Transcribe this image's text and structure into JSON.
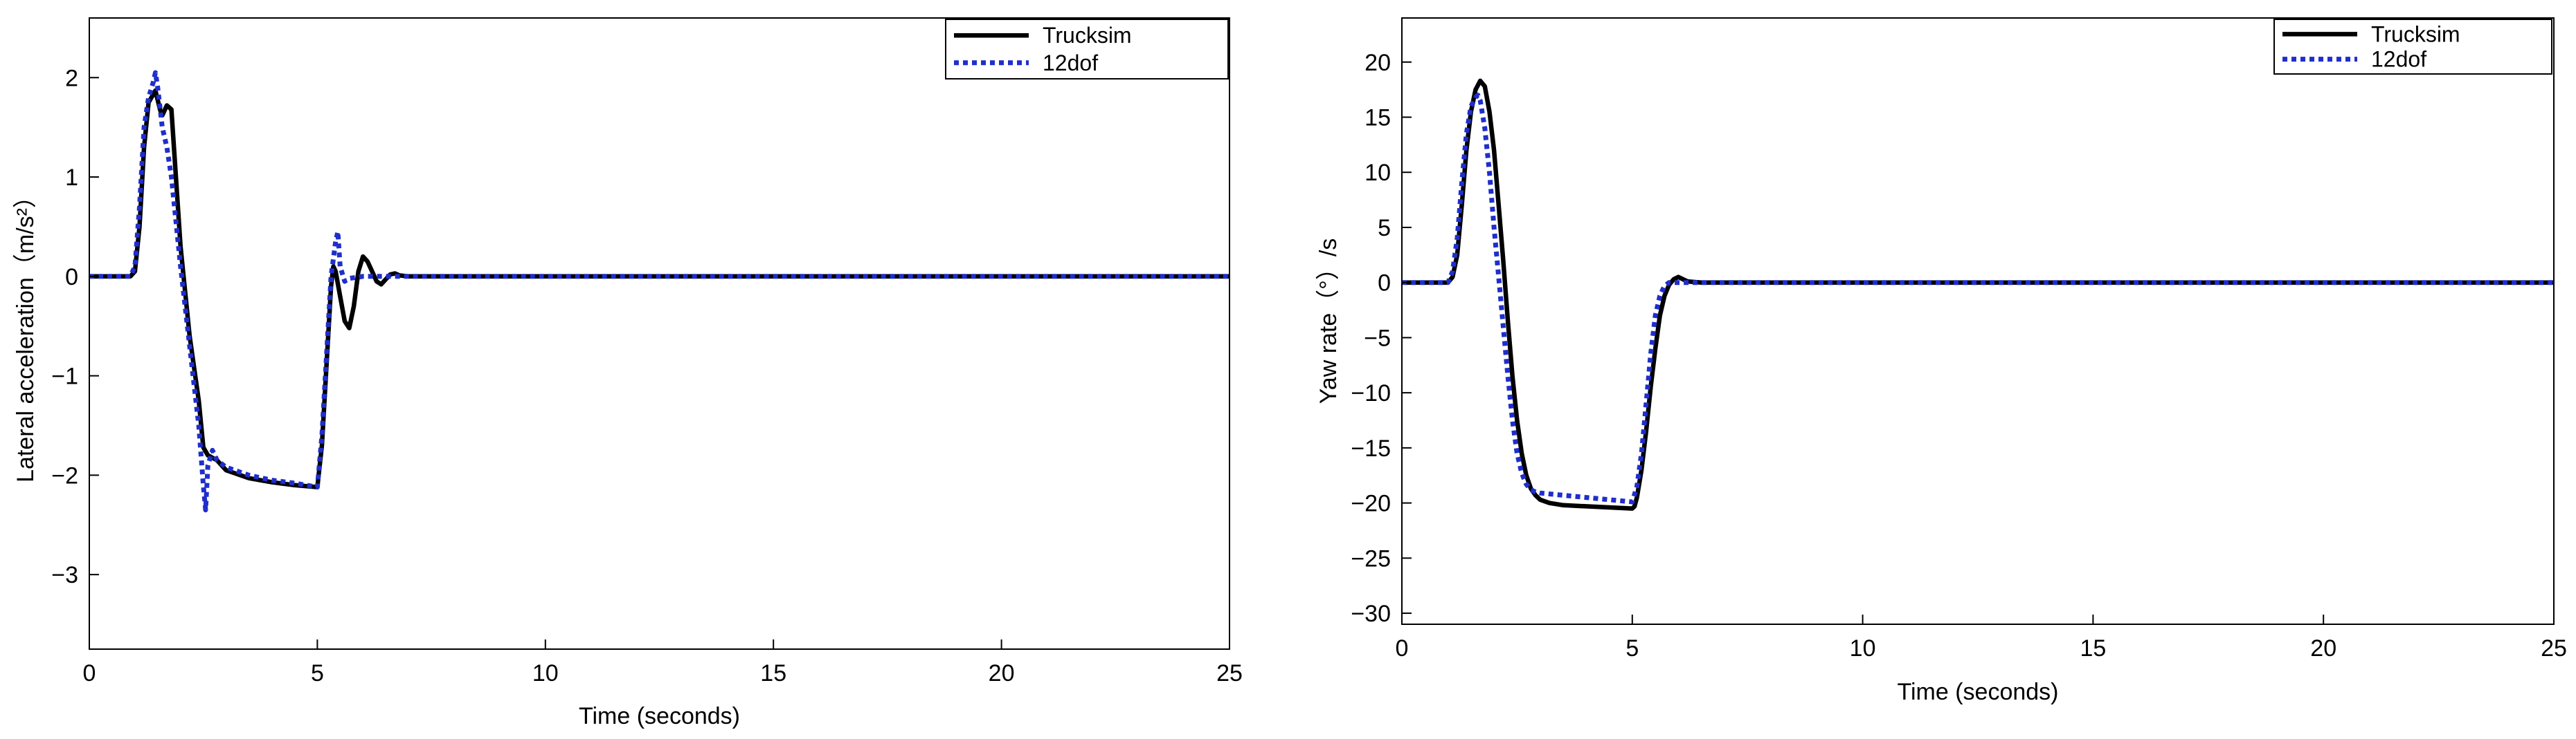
{
  "chart_data": [
    {
      "type": "line",
      "title": "",
      "xlabel": "Time (seconds)",
      "ylabel": "Lateral acceleration（m/s²）",
      "xlim": [
        0,
        25
      ],
      "ylim": [
        -3.75,
        2.6
      ],
      "xticks": [
        0,
        5,
        10,
        15,
        20,
        25
      ],
      "xtick_labels": [
        "0",
        "5",
        "10",
        "15",
        "20",
        "25"
      ],
      "yticks": [
        2,
        1,
        0,
        -1,
        -2,
        -3
      ],
      "ytick_labels": [
        "2",
        "1",
        "0",
        "−1",
        "−2",
        "−3"
      ],
      "grid": false,
      "legend": "top-right",
      "series": [
        {
          "name": "Trucksim",
          "color": "#000000",
          "style": "solid",
          "x": [
            0,
            0.9,
            1.0,
            1.1,
            1.2,
            1.3,
            1.45,
            1.55,
            1.6,
            1.7,
            1.8,
            2.0,
            2.2,
            2.4,
            2.5,
            2.6,
            2.8,
            3.0,
            3.5,
            4.0,
            4.5,
            5.0,
            5.1,
            5.2,
            5.3,
            5.35,
            5.4,
            5.5,
            5.6,
            5.7,
            5.8,
            5.9,
            6.0,
            6.1,
            6.2,
            6.3,
            6.4,
            6.5,
            6.6,
            6.7,
            6.8,
            7.0,
            7.5,
            8,
            10,
            15,
            20,
            25
          ],
          "y": [
            0,
            0,
            0.05,
            0.5,
            1.3,
            1.75,
            1.87,
            1.68,
            1.62,
            1.72,
            1.68,
            0.3,
            -0.6,
            -1.25,
            -1.72,
            -1.8,
            -1.85,
            -1.95,
            -2.03,
            -2.07,
            -2.1,
            -2.12,
            -1.7,
            -0.9,
            -0.1,
            0.1,
            0.05,
            -0.2,
            -0.45,
            -0.52,
            -0.3,
            0.05,
            0.2,
            0.15,
            0.05,
            -0.05,
            -0.08,
            -0.03,
            0.02,
            0.03,
            0.01,
            0,
            0,
            0,
            0,
            0,
            0,
            0
          ]
        },
        {
          "name": "12dof",
          "color": "#1f2ecc",
          "style": "dotted",
          "x": [
            0,
            0.9,
            1.0,
            1.1,
            1.2,
            1.3,
            1.4,
            1.45,
            1.5,
            1.6,
            1.7,
            1.8,
            2.0,
            2.2,
            2.4,
            2.5,
            2.55,
            2.6,
            2.7,
            2.8,
            3.0,
            3.5,
            4.0,
            4.5,
            5.0,
            5.1,
            5.2,
            5.3,
            5.4,
            5.45,
            5.5,
            5.6,
            5.7,
            6.0,
            6.5,
            7,
            10,
            15,
            20,
            25
          ],
          "y": [
            0,
            0,
            0.1,
            0.7,
            1.5,
            1.8,
            1.95,
            2.05,
            1.9,
            1.5,
            1.3,
            1.0,
            0.1,
            -0.7,
            -1.5,
            -2.1,
            -2.35,
            -1.9,
            -1.75,
            -1.85,
            -1.92,
            -2.0,
            -2.05,
            -2.08,
            -2.12,
            -1.6,
            -0.8,
            0.0,
            0.35,
            0.45,
            0.1,
            -0.05,
            -0.02,
            0,
            0,
            0,
            0,
            0,
            0,
            0
          ]
        }
      ]
    },
    {
      "type": "line",
      "title": "",
      "xlabel": "Time (seconds)",
      "ylabel": "Yaw rate（°）/s",
      "xlim": [
        0,
        25
      ],
      "ylim": [
        -31,
        24
      ],
      "xticks": [
        0,
        5,
        10,
        15,
        20,
        25
      ],
      "xtick_labels": [
        "0",
        "5",
        "10",
        "15",
        "20",
        "25"
      ],
      "yticks": [
        20,
        15,
        10,
        5,
        0,
        -5,
        -10,
        -15,
        -20,
        -25,
        -30
      ],
      "ytick_labels": [
        "20",
        "15",
        "10",
        "5",
        "0",
        "−5",
        "−10",
        "−15",
        "−20",
        "−25",
        "−30"
      ],
      "grid": false,
      "legend": "top-right",
      "series": [
        {
          "name": "Trucksim",
          "color": "#000000",
          "style": "solid",
          "x": [
            0,
            1.0,
            1.1,
            1.2,
            1.3,
            1.4,
            1.5,
            1.6,
            1.7,
            1.8,
            1.9,
            2.0,
            2.1,
            2.2,
            2.3,
            2.4,
            2.5,
            2.6,
            2.7,
            2.8,
            2.9,
            3.0,
            3.2,
            3.5,
            4.0,
            4.5,
            5.0,
            5.05,
            5.1,
            5.2,
            5.3,
            5.4,
            5.5,
            5.6,
            5.7,
            5.8,
            5.9,
            6.0,
            6.1,
            6.2,
            6.5,
            10,
            15,
            20,
            25
          ],
          "y": [
            0,
            0,
            0.5,
            2.5,
            7,
            12,
            15.5,
            17.5,
            18.3,
            17.8,
            15.5,
            12,
            7,
            2,
            -3.5,
            -8.5,
            -12.5,
            -15.5,
            -17.5,
            -18.7,
            -19.3,
            -19.7,
            -20,
            -20.2,
            -20.3,
            -20.4,
            -20.5,
            -20.3,
            -19.5,
            -17,
            -13.5,
            -9.5,
            -6,
            -3,
            -1.2,
            -0.2,
            0.3,
            0.5,
            0.3,
            0.1,
            0,
            0,
            0,
            0,
            0
          ]
        },
        {
          "name": "12dof",
          "color": "#1f2ecc",
          "style": "dotted",
          "x": [
            0,
            1.0,
            1.1,
            1.2,
            1.3,
            1.4,
            1.5,
            1.6,
            1.65,
            1.7,
            1.8,
            1.9,
            2.0,
            2.1,
            2.2,
            2.3,
            2.4,
            2.5,
            2.6,
            2.7,
            2.8,
            2.9,
            3.0,
            3.5,
            4.0,
            4.5,
            5.0,
            5.1,
            5.2,
            5.3,
            5.4,
            5.5,
            5.6,
            5.7,
            5.8,
            5.9,
            6.0,
            6.5,
            10,
            15,
            20,
            25
          ],
          "y": [
            0,
            0,
            1,
            4,
            9,
            13.5,
            16,
            16.8,
            17,
            16.5,
            14,
            10,
            5,
            0.5,
            -4,
            -8.5,
            -12.5,
            -15.5,
            -17.3,
            -18.3,
            -18.8,
            -19,
            -19.1,
            -19.3,
            -19.5,
            -19.7,
            -19.9,
            -18.5,
            -15.5,
            -11,
            -6.5,
            -3,
            -1.2,
            -0.3,
            0,
            0,
            0,
            0,
            0,
            0,
            0,
            0
          ]
        }
      ]
    }
  ]
}
